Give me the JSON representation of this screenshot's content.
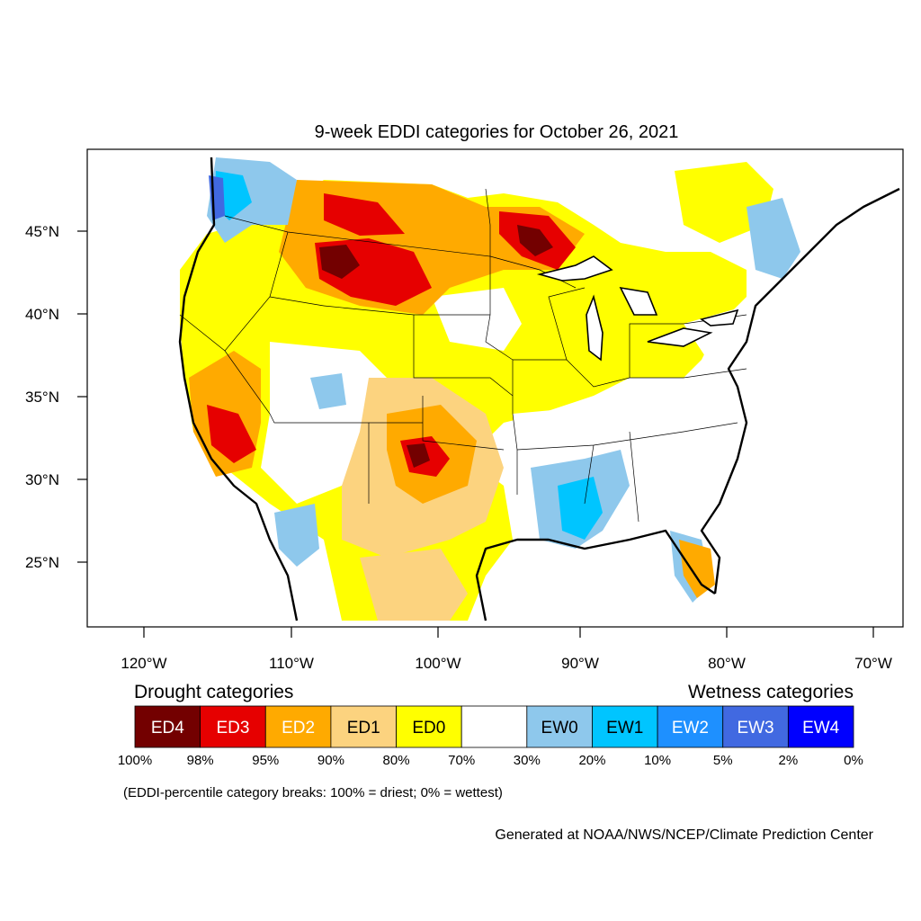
{
  "title": "9-week EDDI categories for October 26, 2021",
  "map": {
    "lat_ticks": [
      "45°N",
      "40°N",
      "35°N",
      "30°N",
      "25°N"
    ],
    "lon_ticks": [
      "120°W",
      "110°W",
      "100°W",
      "90°W",
      "80°W",
      "70°W"
    ]
  },
  "legend": {
    "drought_title": "Drought categories",
    "wetness_title": "Wetness categories",
    "categories": [
      {
        "label": "ED4",
        "color": "#730000",
        "text_color": "#ffffff"
      },
      {
        "label": "ED3",
        "color": "#e60000",
        "text_color": "#ffffff"
      },
      {
        "label": "ED2",
        "color": "#ffaa00",
        "text_color": "#ffffff"
      },
      {
        "label": "ED1",
        "color": "#fcd37f",
        "text_color": "#000000"
      },
      {
        "label": "ED0",
        "color": "#ffff00",
        "text_color": "#000000"
      },
      {
        "label": "",
        "color": "#ffffff",
        "text_color": "#000000"
      },
      {
        "label": "EW0",
        "color": "#8ec8ec",
        "text_color": "#000000"
      },
      {
        "label": "EW1",
        "color": "#00c5ff",
        "text_color": "#000000"
      },
      {
        "label": "EW2",
        "color": "#1e90ff",
        "text_color": "#ffffff"
      },
      {
        "label": "EW3",
        "color": "#4169e1",
        "text_color": "#ffffff"
      },
      {
        "label": "EW4",
        "color": "#0000ff",
        "text_color": "#ffffff"
      }
    ],
    "breaks": [
      "100%",
      "98%",
      "95%",
      "90%",
      "80%",
      "70%",
      "30%",
      "20%",
      "10%",
      "5%",
      "2%",
      "0%"
    ]
  },
  "note": "(EDDI-percentile category breaks: 100% = driest; 0% = wettest)",
  "credit": "Generated at NOAA/NWS/NCEP/Climate Prediction Center"
}
